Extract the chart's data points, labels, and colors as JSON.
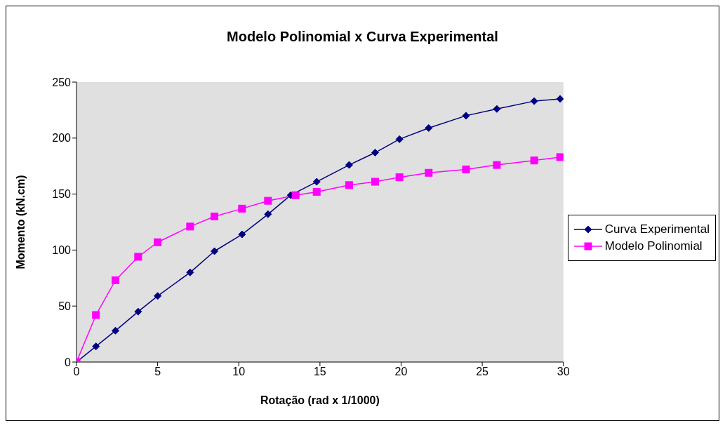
{
  "chart_data": {
    "type": "line",
    "title": "Modelo Polinomial x Curva Experimental",
    "xlabel": "Rotação (rad x 1/1000)",
    "ylabel": "Momento (kN.cm)",
    "xlim": [
      0,
      30
    ],
    "xticks": [
      0,
      5,
      10,
      15,
      20,
      25,
      30
    ],
    "ylim": [
      0,
      250
    ],
    "yticks": [
      0,
      50,
      100,
      150,
      200,
      250
    ],
    "grid": false,
    "legend": "right",
    "series": [
      {
        "name": "Curva Experimental",
        "color": "#000080",
        "marker": "diamond",
        "x": [
          0,
          1.2,
          2.4,
          3.8,
          5,
          7,
          8.5,
          10.2,
          11.8,
          13.2,
          14.8,
          16.8,
          18.4,
          19.9,
          21.7,
          24,
          25.9,
          28.2,
          29.8
        ],
        "values": [
          0,
          14,
          28,
          45,
          59,
          80,
          99,
          114,
          132,
          149,
          161,
          176,
          187,
          199,
          209,
          220,
          226,
          233,
          235
        ]
      },
      {
        "name": "Modelo Polinomial",
        "color": "#ff00ff",
        "marker": "square",
        "x": [
          0,
          1.2,
          2.4,
          3.8,
          5,
          7,
          8.5,
          10.2,
          11.8,
          13.5,
          14.8,
          16.8,
          18.4,
          19.9,
          21.7,
          24,
          25.9,
          28.2,
          29.8
        ],
        "values": [
          0,
          42,
          73,
          94,
          107,
          121,
          130,
          137,
          144,
          149,
          152,
          158,
          161,
          165,
          169,
          172,
          176,
          180,
          183
        ]
      }
    ]
  }
}
